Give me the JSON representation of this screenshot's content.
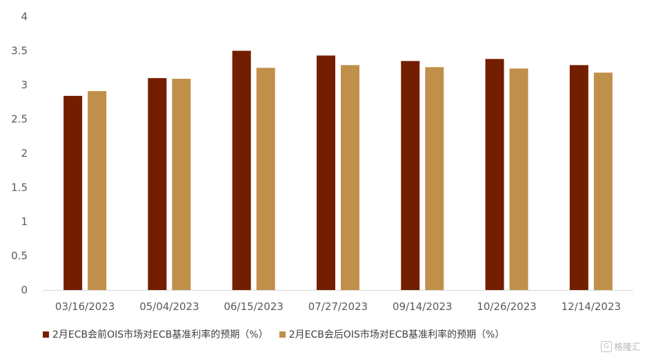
{
  "chart_data": {
    "type": "bar",
    "categories": [
      "03/16/2023",
      "05/04/2023",
      "06/15/2023",
      "07/27/2023",
      "09/14/2023",
      "10/26/2023",
      "12/14/2023"
    ],
    "series": [
      {
        "name": "2月ECB会前OIS市场对ECB基准利率的预期（%）",
        "values": [
          2.84,
          3.1,
          3.5,
          3.43,
          3.35,
          3.38,
          3.29
        ],
        "color": "#741E00"
      },
      {
        "name": "2月ECB会后OIS市场对ECB基准利率的预期（%）",
        "values": [
          2.91,
          3.09,
          3.25,
          3.29,
          3.26,
          3.24,
          3.18
        ],
        "color": "#C0904A"
      }
    ],
    "yticks": [
      0,
      0.5,
      1,
      1.5,
      2,
      2.5,
      3,
      3.5,
      4
    ],
    "ytick_labels": [
      "0",
      "0.5",
      "1",
      "1.5",
      "2",
      "2.5",
      "3",
      "3.5",
      "4"
    ],
    "ylim": [
      0,
      4
    ],
    "grid": false,
    "legend_position": "bottom",
    "title": "",
    "xlabel": "",
    "ylabel": ""
  },
  "watermark": {
    "text": "格隆汇",
    "icon": "logo-g-icon"
  }
}
